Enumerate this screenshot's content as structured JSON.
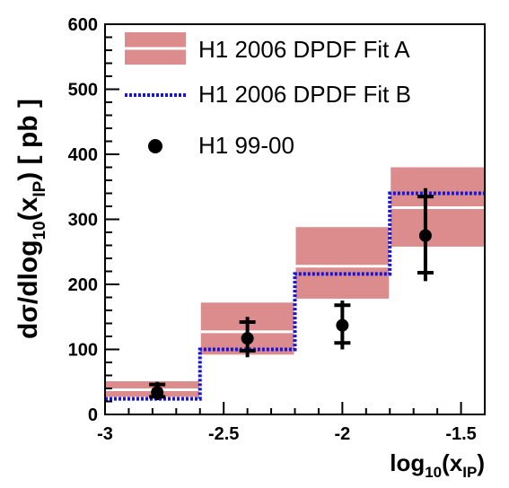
{
  "chart_data": {
    "type": "bar",
    "xlabel": "log10(xIP)",
    "xlabel_parts": {
      "base": "log",
      "sub": "10",
      "open": "(x",
      "sub2": "IP",
      "close": ")"
    },
    "ylabel": "dσ/dlog10(xIP) [ pb ]",
    "ylabel_parts": {
      "pre": "dσ/dlog",
      "sub": "10",
      "mid": "(x",
      "sub2": "IP",
      "post": ") [ pb ]"
    },
    "xlim": [
      -3,
      -1.4
    ],
    "ylim": [
      0,
      600
    ],
    "x_ticks": [
      -3,
      -2.5,
      -2,
      -1.5
    ],
    "x_tick_labels": [
      "-3",
      "-2.5",
      "-2",
      "-1.5"
    ],
    "y_ticks": [
      0,
      100,
      200,
      300,
      400,
      500,
      600
    ],
    "y_tick_labels": [
      "0",
      "100",
      "200",
      "300",
      "400",
      "500",
      "600"
    ],
    "bins": [
      [
        -3.0,
        -2.6
      ],
      [
        -2.6,
        -2.2
      ],
      [
        -2.2,
        -1.8
      ],
      [
        -1.8,
        -1.4
      ]
    ],
    "series": [
      {
        "name": "H1 2006 DPDF Fit A",
        "kind": "band",
        "color": "#dc8c8c",
        "central_color": "#ffffff",
        "central": [
          38,
          127,
          228,
          318
        ],
        "low": [
          27,
          92,
          178,
          258
        ],
        "high": [
          51,
          172,
          288,
          380
        ]
      },
      {
        "name": "H1 2006 DPDF Fit B",
        "kind": "step",
        "color": "#1414dc",
        "values": [
          24,
          100,
          216,
          340
        ]
      },
      {
        "name": "H1 99-00",
        "kind": "points",
        "color": "#000000",
        "x": [
          -2.78,
          -2.4,
          -2.0,
          -1.65
        ],
        "y": [
          34,
          117,
          137,
          275
        ],
        "err_inner_low": [
          27,
          98,
          110,
          218
        ],
        "err_inner_high": [
          46,
          142,
          168,
          335
        ],
        "err_outer_low": [
          22,
          88,
          100,
          205
        ],
        "err_outer_high": [
          50,
          150,
          175,
          348
        ]
      }
    ],
    "legend": {
      "placement": "top-left",
      "entries": [
        "H1 2006 DPDF Fit A",
        "H1 2006 DPDF Fit B",
        "H1 99-00"
      ]
    }
  }
}
